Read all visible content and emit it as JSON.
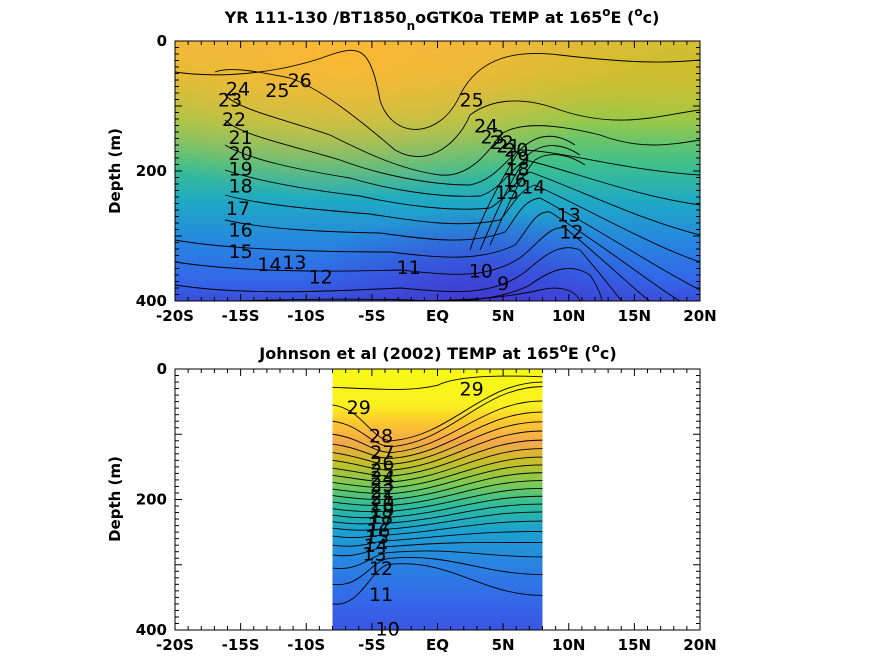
{
  "chart_data": [
    {
      "type": "heatmap",
      "title": "YR 111-130 /BT1850",
      "title_sub": "n",
      "title_rest": "oGTK0a TEMP at 165",
      "title_sup": "o",
      "title_end": "E (",
      "title_sup2": "o",
      "title_close": "c)",
      "ylabel": "Depth (m)",
      "xlabel": "",
      "xlim": [
        -20,
        20
      ],
      "ylim": [
        0,
        400
      ],
      "x_ticks": [
        {
          "value": -20,
          "label": "-20S"
        },
        {
          "value": -15,
          "label": "-15S"
        },
        {
          "value": -10,
          "label": "-10S"
        },
        {
          "value": -5,
          "label": "-5S"
        },
        {
          "value": 0,
          "label": "EQ"
        },
        {
          "value": 5,
          "label": "5N"
        },
        {
          "value": 10,
          "label": "10N"
        },
        {
          "value": 15,
          "label": "15N"
        },
        {
          "value": 20,
          "label": "20N"
        }
      ],
      "y_ticks": [
        {
          "value": 0,
          "label": "0"
        },
        {
          "value": 200,
          "label": "200"
        },
        {
          "value": 400,
          "label": "400"
        }
      ],
      "data_extent": {
        "x": [
          -20,
          20
        ],
        "y": [
          0,
          400
        ]
      },
      "contour_labels": [
        {
          "text": "26",
          "x": -10.5,
          "y": 60
        },
        {
          "text": "25",
          "x": -12.2,
          "y": 75
        },
        {
          "text": "24",
          "x": -15.2,
          "y": 73
        },
        {
          "text": "23",
          "x": -15.8,
          "y": 90
        },
        {
          "text": "22",
          "x": -15.5,
          "y": 120
        },
        {
          "text": "21",
          "x": -15.0,
          "y": 148
        },
        {
          "text": "20",
          "x": -15.0,
          "y": 172
        },
        {
          "text": "19",
          "x": -15.0,
          "y": 196
        },
        {
          "text": "18",
          "x": -15.0,
          "y": 222
        },
        {
          "text": "17",
          "x": -15.2,
          "y": 257
        },
        {
          "text": "16",
          "x": -15.0,
          "y": 290
        },
        {
          "text": "15",
          "x": -15.0,
          "y": 323
        },
        {
          "text": "14",
          "x": -12.8,
          "y": 343
        },
        {
          "text": "13",
          "x": -10.9,
          "y": 340
        },
        {
          "text": "12",
          "x": -8.9,
          "y": 362
        },
        {
          "text": "11",
          "x": -2.2,
          "y": 348
        },
        {
          "text": "10",
          "x": 3.3,
          "y": 353
        },
        {
          "text": "9",
          "x": 5.0,
          "y": 372
        },
        {
          "text": "25",
          "x": 2.6,
          "y": 90
        },
        {
          "text": "24",
          "x": 3.7,
          "y": 130
        },
        {
          "text": "23",
          "x": 4.2,
          "y": 147
        },
        {
          "text": "22",
          "x": 4.9,
          "y": 155
        },
        {
          "text": "21",
          "x": 5.4,
          "y": 161
        },
        {
          "text": "20",
          "x": 6.0,
          "y": 167
        },
        {
          "text": "19",
          "x": 6.1,
          "y": 180
        },
        {
          "text": "18",
          "x": 6.1,
          "y": 196
        },
        {
          "text": "16",
          "x": 5.9,
          "y": 213
        },
        {
          "text": "15",
          "x": 5.3,
          "y": 232
        },
        {
          "text": "14",
          "x": 7.3,
          "y": 224
        },
        {
          "text": "13",
          "x": 10.0,
          "y": 267
        },
        {
          "text": "12",
          "x": 10.2,
          "y": 293
        }
      ]
    },
    {
      "type": "heatmap",
      "title": "Johnson et al (2002) TEMP at 165",
      "title_sub": "",
      "title_rest": "",
      "title_sup": "o",
      "title_end": "E (",
      "title_sup2": "o",
      "title_close": "c)",
      "ylabel": "Depth (m)",
      "xlabel": "",
      "xlim": [
        -20,
        20
      ],
      "ylim": [
        0,
        400
      ],
      "x_ticks": [
        {
          "value": -20,
          "label": "-20S"
        },
        {
          "value": -15,
          "label": "-15S"
        },
        {
          "value": -10,
          "label": "-10S"
        },
        {
          "value": -5,
          "label": "-5S"
        },
        {
          "value": 0,
          "label": "EQ"
        },
        {
          "value": 5,
          "label": "5N"
        },
        {
          "value": 10,
          "label": "10N"
        },
        {
          "value": 15,
          "label": "15N"
        },
        {
          "value": 20,
          "label": "20N"
        }
      ],
      "y_ticks": [
        {
          "value": 0,
          "label": "0"
        },
        {
          "value": 200,
          "label": "200"
        },
        {
          "value": 400,
          "label": "400"
        }
      ],
      "data_extent": {
        "x": [
          -8,
          8
        ],
        "y": [
          0,
          400
        ]
      },
      "contour_labels": [
        {
          "text": "29",
          "x": 2.6,
          "y": 30
        },
        {
          "text": "29",
          "x": -6.0,
          "y": 58
        },
        {
          "text": "28",
          "x": -4.3,
          "y": 102
        },
        {
          "text": "27",
          "x": -4.2,
          "y": 127
        },
        {
          "text": "26",
          "x": -4.2,
          "y": 143
        },
        {
          "text": "25",
          "x": -4.2,
          "y": 155
        },
        {
          "text": "24",
          "x": -4.2,
          "y": 166
        },
        {
          "text": "23",
          "x": -4.2,
          "y": 176
        },
        {
          "text": "22",
          "x": -4.2,
          "y": 186
        },
        {
          "text": "21",
          "x": -4.2,
          "y": 196
        },
        {
          "text": "20",
          "x": -4.2,
          "y": 206
        },
        {
          "text": "19",
          "x": -4.2,
          "y": 216
        },
        {
          "text": "18",
          "x": -4.3,
          "y": 227
        },
        {
          "text": "17",
          "x": -4.4,
          "y": 237
        },
        {
          "text": "16",
          "x": -4.5,
          "y": 247
        },
        {
          "text": "15",
          "x": -4.6,
          "y": 257
        },
        {
          "text": "14",
          "x": -4.7,
          "y": 270
        },
        {
          "text": "13",
          "x": -4.8,
          "y": 283
        },
        {
          "text": "12",
          "x": -4.3,
          "y": 305
        },
        {
          "text": "11",
          "x": -4.3,
          "y": 345
        },
        {
          "text": "10",
          "x": -3.8,
          "y": 398
        }
      ]
    }
  ]
}
